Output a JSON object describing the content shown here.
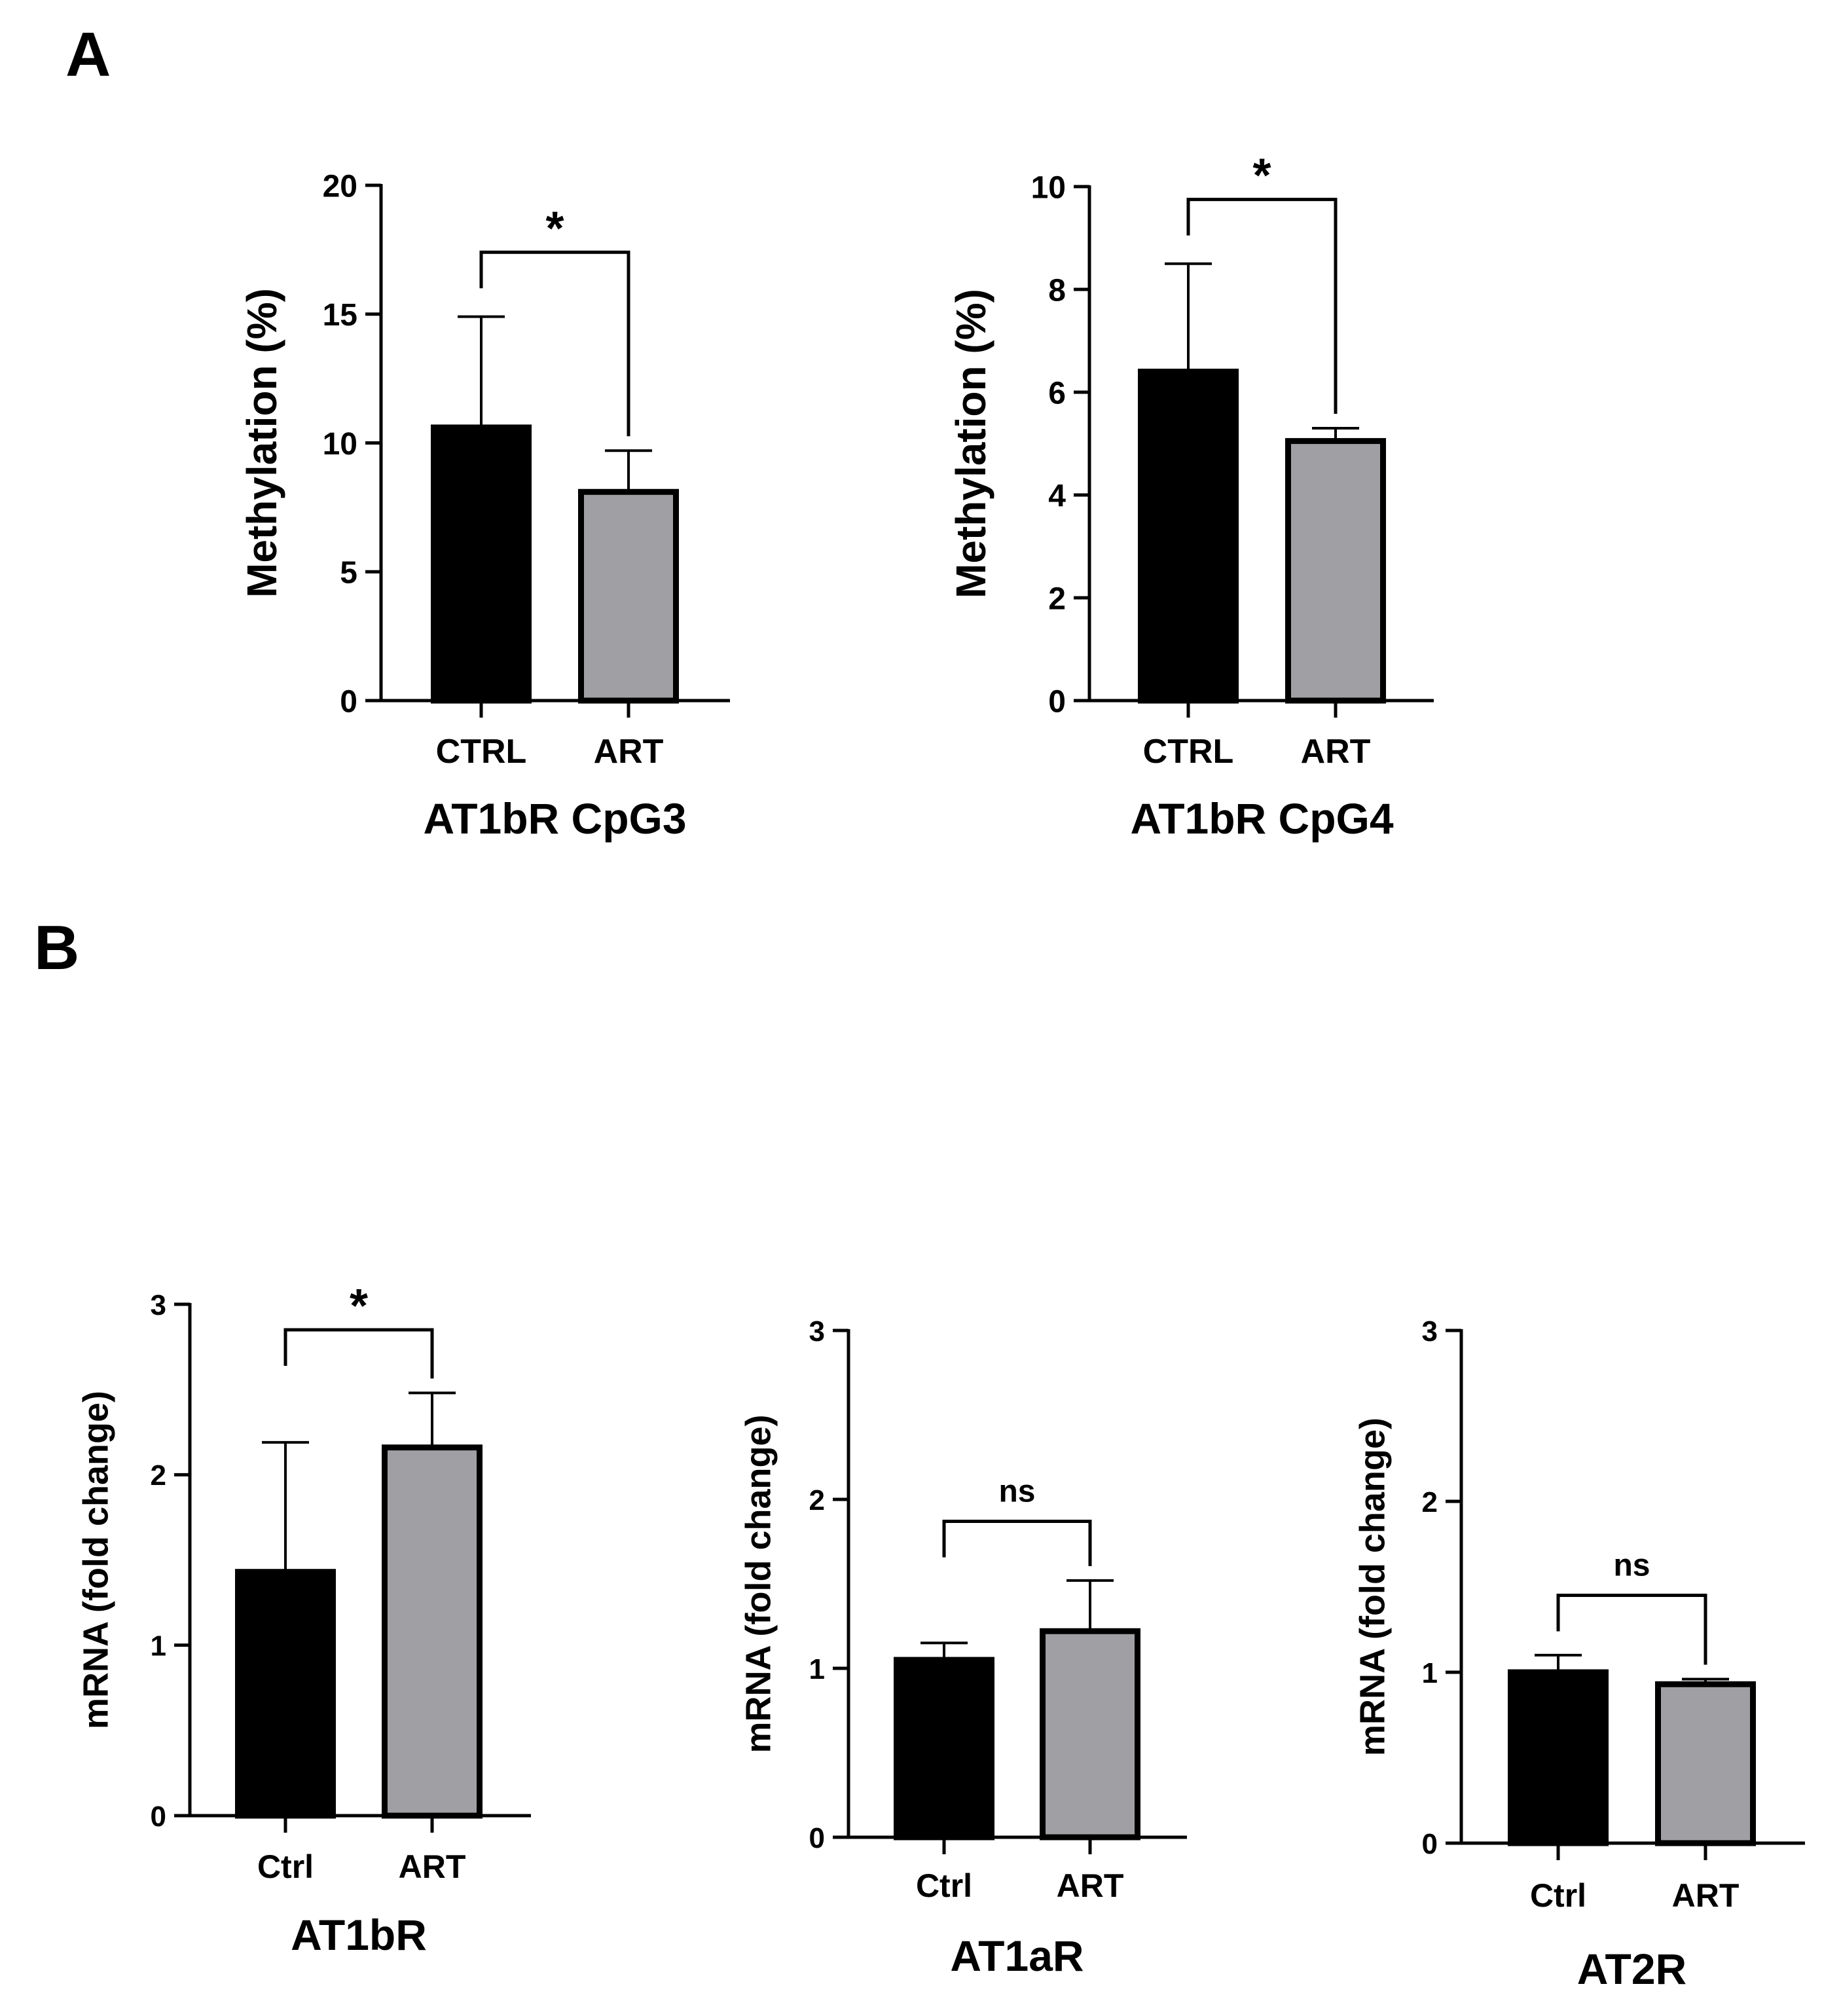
{
  "panels": [
    {
      "letter": "A"
    },
    {
      "letter": "B"
    }
  ],
  "colors": {
    "ctrl": "#000000",
    "art": "#a0a0a4",
    "axis": "#000000"
  },
  "chart_data": [
    {
      "id": "cpg3",
      "panel": "A",
      "type": "bar",
      "title": "AT1bR CpG3",
      "ylabel": "Methylation (%)",
      "ylim": [
        0,
        20
      ],
      "yticks": [
        {
          "v": 0,
          "label": "0"
        },
        {
          "v": 5,
          "label": "5"
        },
        {
          "v": 10,
          "label": "10"
        },
        {
          "v": 15,
          "label": "15"
        },
        {
          "v": 20,
          "label": "20"
        }
      ],
      "categories": [
        "CTRL",
        "ART"
      ],
      "values": [
        10.6,
        8.1
      ],
      "errors": [
        4.3,
        1.6
      ],
      "significance": {
        "label": "*",
        "bracket_y": 17.4
      }
    },
    {
      "id": "cpg4",
      "panel": "A",
      "type": "bar",
      "title": "AT1bR CpG4",
      "ylabel": "Methylation (%)",
      "ylim": [
        0,
        10
      ],
      "yticks": [
        {
          "v": 0,
          "label": "0"
        },
        {
          "v": 2,
          "label": "2"
        },
        {
          "v": 4,
          "label": "4"
        },
        {
          "v": 6,
          "label": "6"
        },
        {
          "v": 8,
          "label": "8"
        },
        {
          "v": 10,
          "label": "10"
        }
      ],
      "categories": [
        "CTRL",
        "ART"
      ],
      "values": [
        6.4,
        5.05
      ],
      "errors": [
        2.1,
        0.25
      ],
      "significance": {
        "label": "*",
        "bracket_y": 9.75
      }
    },
    {
      "id": "at1br",
      "panel": "B",
      "type": "bar",
      "title": "AT1bR",
      "ylabel": "mRNA (fold change)",
      "ylim": [
        0,
        3
      ],
      "yticks": [
        {
          "v": 0,
          "label": "0"
        },
        {
          "v": 1,
          "label": "1"
        },
        {
          "v": 2,
          "label": "2"
        },
        {
          "v": 3,
          "label": "3"
        }
      ],
      "categories": [
        "Ctrl",
        "ART"
      ],
      "values": [
        1.43,
        2.16
      ],
      "errors": [
        0.76,
        0.32
      ],
      "significance": {
        "label": "*",
        "bracket_y": 2.85
      }
    },
    {
      "id": "at1ar",
      "panel": "B",
      "type": "bar",
      "title": "AT1aR",
      "ylabel": "mRNA (fold change)",
      "ylim": [
        0,
        3
      ],
      "yticks": [
        {
          "v": 0,
          "label": "0"
        },
        {
          "v": 1,
          "label": "1"
        },
        {
          "v": 2,
          "label": "2"
        },
        {
          "v": 3,
          "label": "3"
        }
      ],
      "categories": [
        "Ctrl",
        "ART"
      ],
      "values": [
        1.05,
        1.22
      ],
      "errors": [
        0.1,
        0.3
      ],
      "significance": {
        "label": "ns",
        "bracket_y": 1.87
      }
    },
    {
      "id": "at2r",
      "panel": "B",
      "type": "bar",
      "title": "AT2R",
      "ylabel": "mRNA (fold change)",
      "ylim": [
        0,
        3
      ],
      "yticks": [
        {
          "v": 0,
          "label": "0"
        },
        {
          "v": 1,
          "label": "1"
        },
        {
          "v": 2,
          "label": "2"
        },
        {
          "v": 3,
          "label": "3"
        }
      ],
      "categories": [
        "Ctrl",
        "ART"
      ],
      "values": [
        1.0,
        0.93
      ],
      "errors": [
        0.1,
        0.03
      ],
      "significance": {
        "label": "ns",
        "bracket_y": 1.45
      }
    }
  ]
}
